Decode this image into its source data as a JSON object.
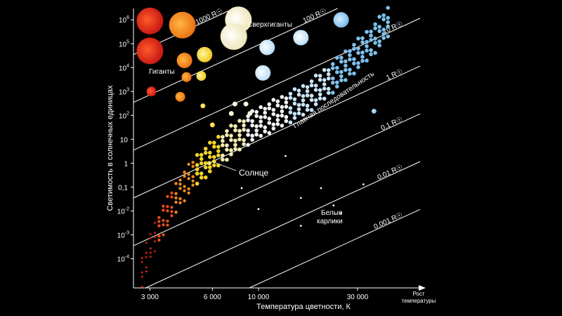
{
  "chart_data": {
    "type": "scatter",
    "x_scale": "log-reversed",
    "y_scale": "log",
    "xlim": [
      2500,
      60000
    ],
    "ylim": [
      6e-06,
      3000000
    ],
    "xlabel": "Температура цветности, К",
    "ylabel": "Светимость в солнечных единицах",
    "x_arrow_label_line1": "Рост",
    "x_arrow_label_line2": "температуры",
    "x_ticks": [
      {
        "value": 3000,
        "label": "3 000"
      },
      {
        "value": 6000,
        "label": "6 000"
      },
      {
        "value": 10000,
        "label": "10 000"
      },
      {
        "value": 30000,
        "label": "30 000"
      }
    ],
    "y_ticks": [
      {
        "value": 0.0001,
        "base": "10",
        "exp": "-4"
      },
      {
        "value": 0.001,
        "base": "10",
        "exp": "-3"
      },
      {
        "value": 0.01,
        "base": "10",
        "exp": "-2"
      },
      {
        "value": 0.1,
        "base": "0,1",
        "exp": ""
      },
      {
        "value": 1,
        "base": "1",
        "exp": ""
      },
      {
        "value": 10,
        "base": "10",
        "exp": ""
      },
      {
        "value": 100,
        "base": "10",
        "exp": "2"
      },
      {
        "value": 1000,
        "base": "10",
        "exp": "3"
      },
      {
        "value": 10000,
        "base": "10",
        "exp": "4"
      },
      {
        "value": 100000,
        "base": "10",
        "exp": "5"
      },
      {
        "value": 1000000,
        "base": "10",
        "exp": "6"
      }
    ],
    "radius_lines": [
      {
        "radius_rsun": 1000,
        "label": "1000 R☉"
      },
      {
        "radius_rsun": 100,
        "label": "100 R☉"
      },
      {
        "radius_rsun": 10,
        "label": "10 R☉"
      },
      {
        "radius_rsun": 1,
        "label": "1 R☉"
      },
      {
        "radius_rsun": 0.1,
        "label": "0,1 R☉"
      },
      {
        "radius_rsun": 0.01,
        "label": "0,01 R☉"
      },
      {
        "radius_rsun": 0.001,
        "label": "0,001 R☉"
      }
    ],
    "annotations": {
      "supergiants": "Сверхгиганты",
      "giants": "Гиганты",
      "main_sequence": "Главная последовательность",
      "sun": "Солнце",
      "white_dwarfs_line1": "Белые",
      "white_dwarfs_line2": "карлики"
    },
    "sun": {
      "temperature": 5800,
      "luminosity": 1
    },
    "supergiants": [
      {
        "temperature": 3000,
        "luminosity": 900000,
        "size": 3
      },
      {
        "temperature": 4300,
        "luminosity": 600000,
        "size": 3
      },
      {
        "temperature": 8000,
        "luminosity": 1000000,
        "size": 3
      },
      {
        "temperature": 7600,
        "luminosity": 200000,
        "size": 3
      },
      {
        "temperature": 11000,
        "luminosity": 70000,
        "size": 2
      },
      {
        "temperature": 16000,
        "luminosity": 180000,
        "size": 2
      },
      {
        "temperature": 25000,
        "luminosity": 1000000,
        "size": 2
      },
      {
        "temperature": 3000,
        "luminosity": 50000,
        "size": 3
      },
      {
        "temperature": 4400,
        "luminosity": 20000,
        "size": 2
      },
      {
        "temperature": 5500,
        "luminosity": 35000,
        "size": 2
      },
      {
        "temperature": 10500,
        "luminosity": 6000,
        "size": 2
      }
    ],
    "giants": [
      {
        "temperature": 4500,
        "luminosity": 4000,
        "size": 1
      },
      {
        "temperature": 5300,
        "luminosity": 4500,
        "size": 1
      },
      {
        "temperature": 3050,
        "luminosity": 1000,
        "size": 1
      },
      {
        "temperature": 4200,
        "luminosity": 600,
        "size": 1
      },
      {
        "temperature": 5400,
        "luminosity": 250,
        "size": 0
      },
      {
        "temperature": 7700,
        "luminosity": 300,
        "size": 0
      },
      {
        "temperature": 8700,
        "luminosity": 300,
        "size": 0
      },
      {
        "temperature": 7400,
        "luminosity": 120,
        "size": 0
      },
      {
        "temperature": 9100,
        "luminosity": 120,
        "size": 0
      },
      {
        "temperature": 6000,
        "luminosity": 40,
        "size": 0
      },
      {
        "temperature": 36000,
        "luminosity": 150,
        "size": 0
      }
    ],
    "main_sequence_ridge": [
      {
        "temperature": 2750,
        "luminosity": 3e-05
      },
      {
        "temperature": 3000,
        "luminosity": 0.0003
      },
      {
        "temperature": 3500,
        "luminosity": 0.005
      },
      {
        "temperature": 4200,
        "luminosity": 0.07
      },
      {
        "temperature": 5000,
        "luminosity": 0.5
      },
      {
        "temperature": 6000,
        "luminosity": 2
      },
      {
        "temperature": 7000,
        "luminosity": 6
      },
      {
        "temperature": 8500,
        "luminosity": 20
      },
      {
        "temperature": 10000,
        "luminosity": 50
      },
      {
        "temperature": 13000,
        "luminosity": 150
      },
      {
        "temperature": 17000,
        "luminosity": 500
      },
      {
        "temperature": 22000,
        "luminosity": 3000
      },
      {
        "temperature": 28000,
        "luminosity": 20000
      },
      {
        "temperature": 35000,
        "luminosity": 120000
      },
      {
        "temperature": 42000,
        "luminosity": 800000
      }
    ],
    "white_dwarfs": [
      {
        "temperature": 8300,
        "luminosity": 0.09
      },
      {
        "temperature": 13500,
        "luminosity": 2
      },
      {
        "temperature": 10000,
        "luminosity": 0.012
      },
      {
        "temperature": 16000,
        "luminosity": 0.035
      },
      {
        "temperature": 20000,
        "luminosity": 0.09
      },
      {
        "temperature": 23000,
        "luminosity": 0.017
      },
      {
        "temperature": 25000,
        "luminosity": 0.008
      },
      {
        "temperature": 16000,
        "luminosity": 0.0024
      },
      {
        "temperature": 32000,
        "luminosity": 0.13
      }
    ],
    "colors": {
      "background": "#000000",
      "axis": "#ffffff",
      "red": "#c8201c",
      "orange": "#ee7d1c",
      "yellow": "#f2d428",
      "pale_yellow": "#f4eeb4",
      "white": "#f4f4f4",
      "light_blue": "#c8e4f6",
      "blue": "#5aa8e4"
    }
  }
}
